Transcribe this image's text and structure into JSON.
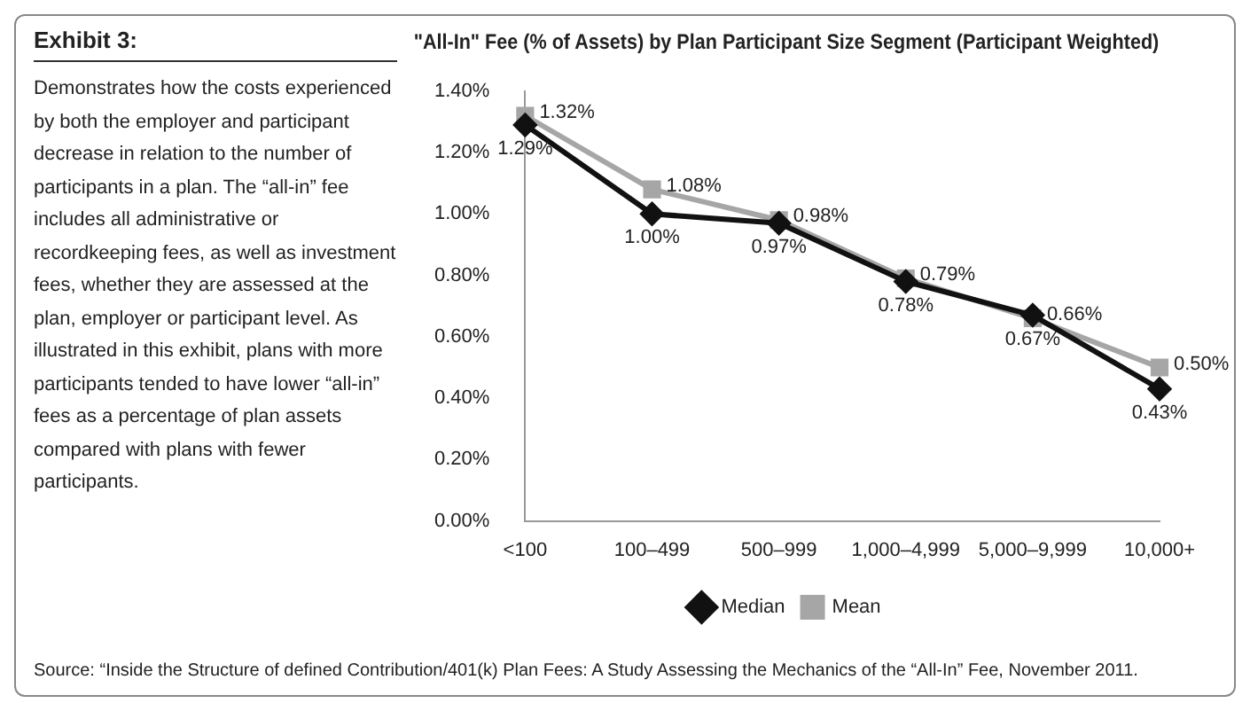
{
  "chart_data": {
    "type": "line",
    "title": "\"All-In\" Fee (% of Assets) by Plan Participant Size Segment (Participant Weighted)",
    "categories": [
      "<100",
      "100–499",
      "500–999",
      "1,000–4,999",
      "5,000–9,999",
      "10,000+"
    ],
    "series": [
      {
        "name": "Median",
        "color": "#111111",
        "marker": "diamond",
        "values": [
          1.29,
          1.0,
          0.97,
          0.78,
          0.67,
          0.43
        ],
        "value_labels": [
          "1.29%",
          "1.00%",
          "0.97%",
          "0.78%",
          "0.67%",
          "0.43%"
        ]
      },
      {
        "name": "Mean",
        "color": "#a6a6a6",
        "marker": "square",
        "values": [
          1.32,
          1.08,
          0.98,
          0.79,
          0.66,
          0.5
        ],
        "value_labels": [
          "1.32%",
          "1.08%",
          "0.98%",
          "0.79%",
          "0.66%",
          "0.50%"
        ]
      }
    ],
    "ylim": [
      0,
      1.4
    ],
    "yticks": [
      {
        "value": 0,
        "label": "0.00%"
      },
      {
        "value": 0.2,
        "label": "0.20%"
      },
      {
        "value": 0.4,
        "label": "0.40%"
      },
      {
        "value": 0.6,
        "label": "0.60%"
      },
      {
        "value": 0.8,
        "label": "0.80%"
      },
      {
        "value": 1.0,
        "label": "1.00%"
      },
      {
        "value": 1.2,
        "label": "1.20%"
      },
      {
        "value": 1.4,
        "label": "1.40%"
      }
    ],
    "grid": false,
    "legend": "bottom",
    "line_style": "solid",
    "annotations": [
      "Exhibit 3:",
      "Demonstrates how the costs experienced by both the employer and participant decrease in relation to the number of participants in a plan. The “all-in” fee includes all administrative or recordkeeping fees, as well as investment fees, whether they are assessed at the plan, employer or participant level. As illustrated in this exhibit, plans with more participants tended to have lower “all-in” fees as a percentage of plan assets compared with plans with fewer participants.",
      "Source: “Inside the Structure of defined Contribution/401(k) Plan Fees: A Study Assessing the Mechanics of the “All-In” Fee, November 2011."
    ]
  }
}
